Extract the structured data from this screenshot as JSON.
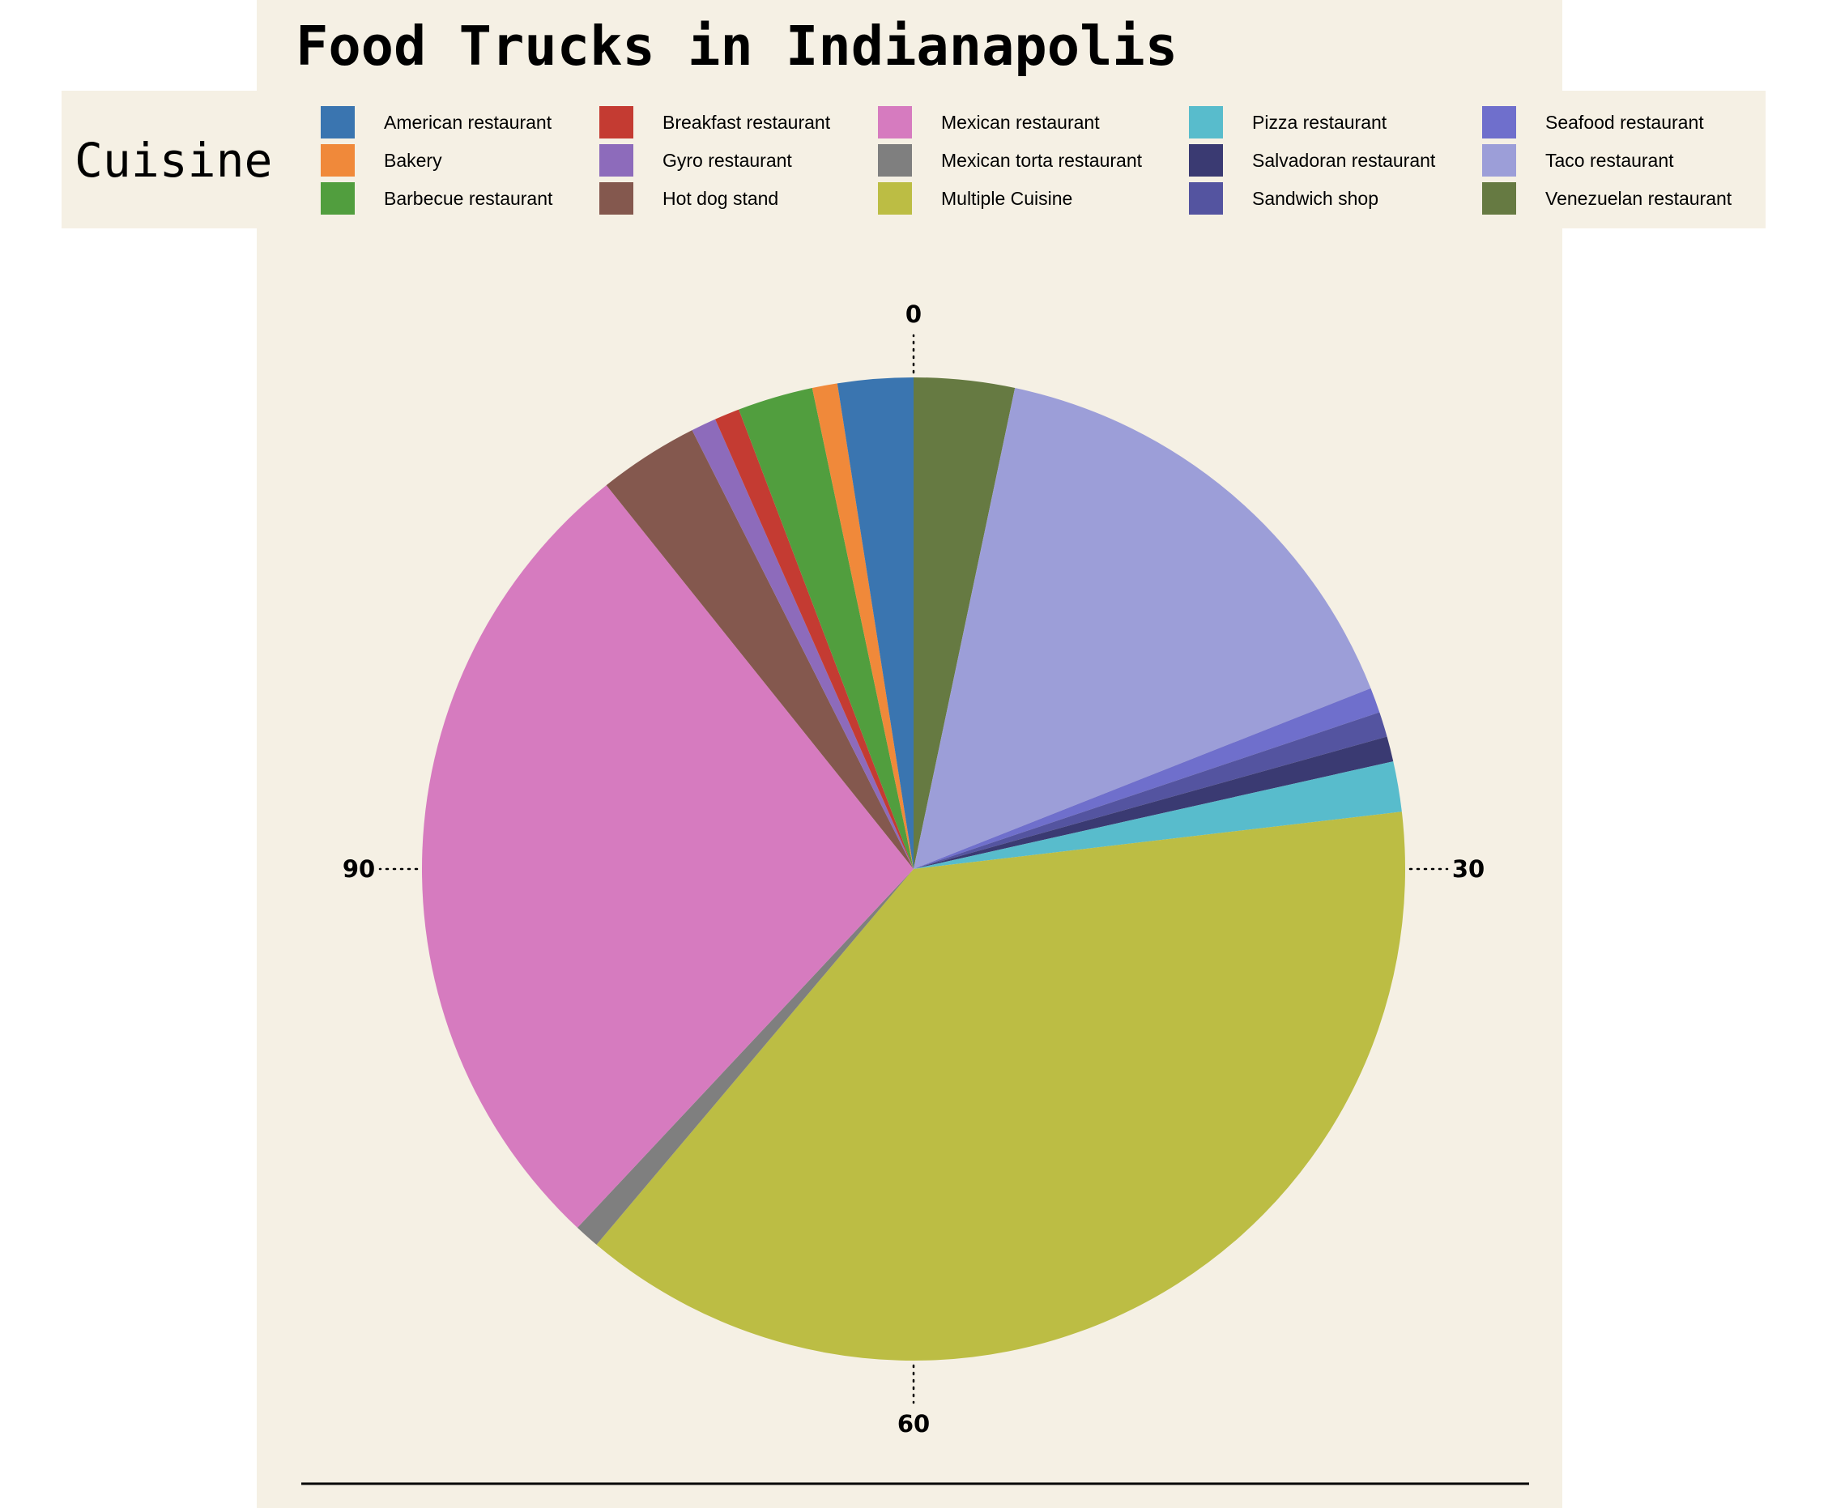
{
  "chart_data": {
    "type": "pie",
    "title": "Food Trucks in Indianapolis",
    "legend_title": "Cuisine",
    "legend_position": "top",
    "angular_axis": {
      "range": [
        0,
        120
      ],
      "direction": "clockwise",
      "ticks": [
        "0",
        "30",
        "60",
        "90"
      ]
    },
    "categories": [
      "American restaurant",
      "Bakery",
      "Barbecue restaurant",
      "Breakfast restaurant",
      "Gyro restaurant",
      "Hot dog stand",
      "Mexican restaurant",
      "Mexican torta restaurant",
      "Multiple Cuisine",
      "Pizza restaurant",
      "Salvadoran restaurant",
      "Sandwich shop",
      "Seafood restaurant",
      "Taco restaurant",
      "Venezuelan restaurant"
    ],
    "values": [
      3,
      1,
      3,
      1,
      1,
      4,
      33,
      1,
      46,
      2,
      1,
      1,
      1,
      19,
      4
    ],
    "colors": [
      "#3a75b0",
      "#f0893a",
      "#519e3e",
      "#c43b32",
      "#8d6bbb",
      "#84584e",
      "#d67bbf",
      "#7f7f7f",
      "#bcbd44",
      "#58bccc",
      "#3a3a72",
      "#5454a0",
      "#6f6fcc",
      "#9c9ed8",
      "#667a42"
    ]
  },
  "colors": {
    "panel_background": "#f5f0e4",
    "page_background": "#ffffff",
    "text": "#000000"
  }
}
